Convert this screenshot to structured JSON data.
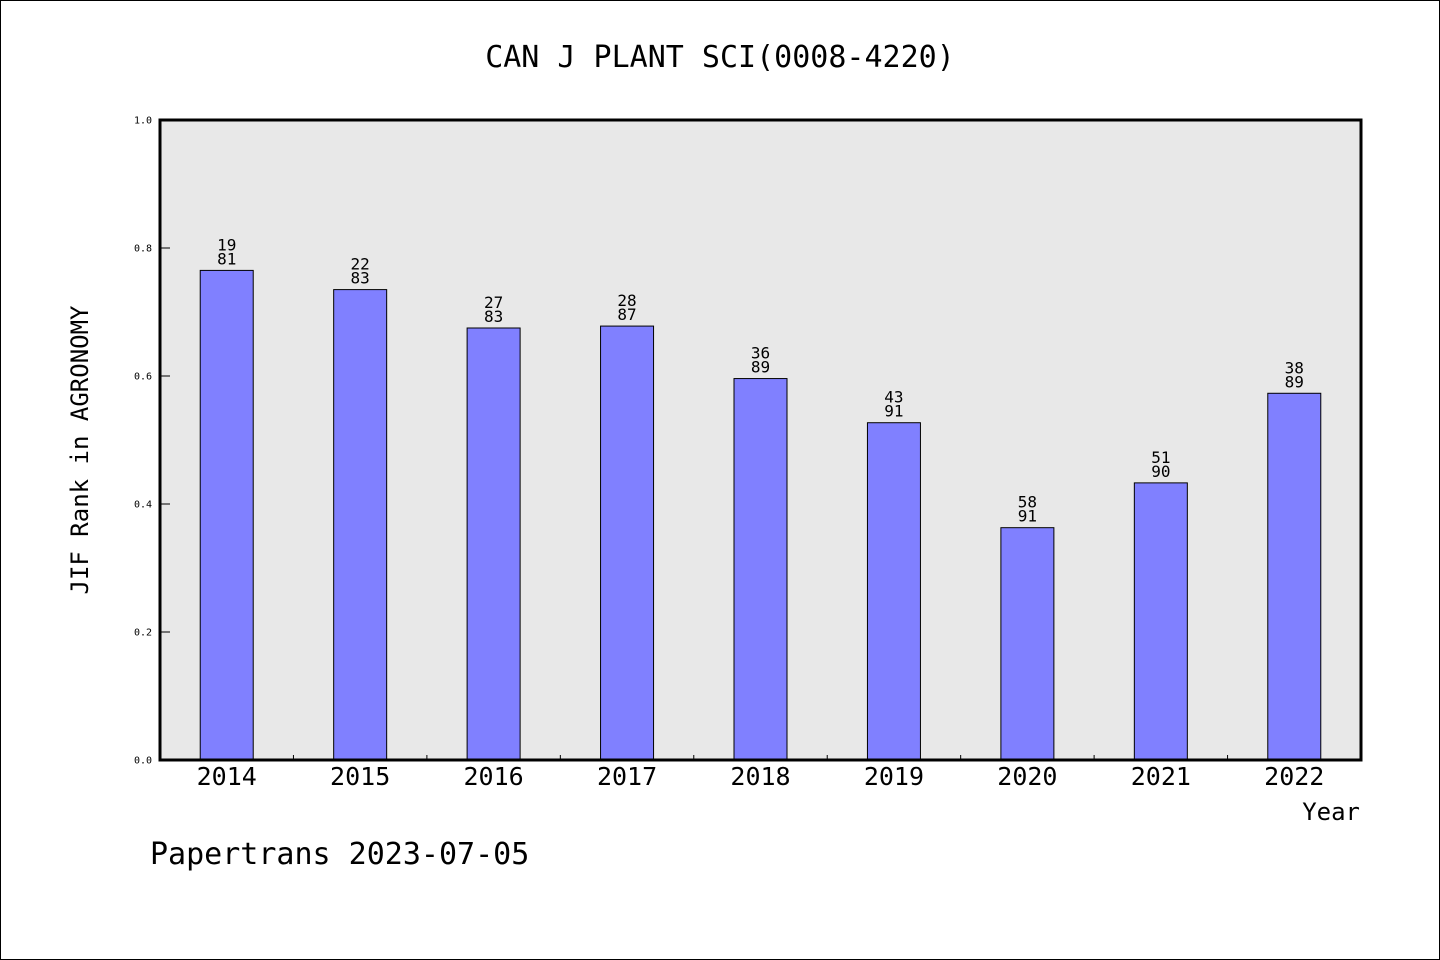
{
  "chart_data": {
    "type": "bar",
    "title": "CAN J PLANT SCI(0008-4220)",
    "xlabel": "Year",
    "ylabel": "JIF Rank in AGRONOMY",
    "ylim": [
      0,
      1.0
    ],
    "yticks": [
      "0.0",
      "0.2",
      "0.4",
      "0.6",
      "0.8",
      "1.0"
    ],
    "grid": false,
    "categories": [
      "2014",
      "2015",
      "2016",
      "2017",
      "2018",
      "2019",
      "2020",
      "2021",
      "2022"
    ],
    "values": [
      0.765,
      0.735,
      0.675,
      0.678,
      0.596,
      0.527,
      0.363,
      0.433,
      0.573
    ],
    "rank": [
      "19",
      "22",
      "27",
      "28",
      "36",
      "43",
      "58",
      "51",
      "38"
    ],
    "total": [
      "81",
      "83",
      "83",
      "87",
      "89",
      "91",
      "91",
      "90",
      "89"
    ]
  },
  "colors": {
    "bar": "#8080ff",
    "plot_background": "#e8e8e8"
  },
  "footer": "Papertrans 2023-07-05"
}
